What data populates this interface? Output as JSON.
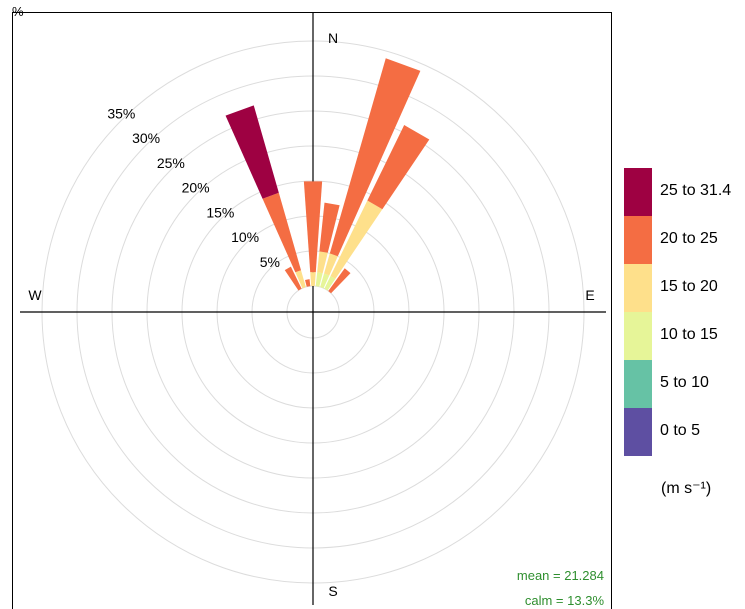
{
  "chart_data": {
    "type": "windrose",
    "axis_unit_label": "%",
    "ring_percents": [
      5,
      10,
      15,
      20,
      25,
      30,
      35
    ],
    "ring_labels": [
      "5%",
      "10%",
      "15%",
      "20%",
      "25%",
      "30%",
      "35%"
    ],
    "compass": {
      "north": "N",
      "south": "S",
      "east": "E",
      "west": "W"
    },
    "direction_bin_width_deg": 10,
    "speed_bins": [
      {
        "label": "0 to 5",
        "color": "#5E4FA2"
      },
      {
        "label": "5 to 10",
        "color": "#66C2A5"
      },
      {
        "label": "10 to 15",
        "color": "#E6F598"
      },
      {
        "label": "15 to 20",
        "color": "#FEE08B"
      },
      {
        "label": "20 to 25",
        "color": "#F46D43"
      },
      {
        "label": "25 to 31.4",
        "color": "#9E0142"
      }
    ],
    "units": "(m s⁻¹)",
    "sectors": [
      {
        "direction_deg": 330,
        "cumulative_percent": [
          0,
          0,
          0,
          0,
          3.5,
          3.5
        ]
      },
      {
        "direction_deg": 340,
        "cumulative_percent": [
          0,
          0,
          0,
          2.5,
          14,
          27
        ]
      },
      {
        "direction_deg": 350,
        "cumulative_percent": [
          0,
          0,
          0,
          0,
          1,
          1
        ]
      },
      {
        "direction_deg": 0,
        "cumulative_percent": [
          0,
          0,
          0,
          2,
          15,
          15
        ]
      },
      {
        "direction_deg": 10,
        "cumulative_percent": [
          0,
          0,
          2,
          5,
          12,
          12
        ]
      },
      {
        "direction_deg": 20,
        "cumulative_percent": [
          0,
          0,
          2,
          5,
          34,
          34
        ]
      },
      {
        "direction_deg": 30,
        "cumulative_percent": [
          0,
          0,
          2,
          14,
          26,
          26
        ]
      },
      {
        "direction_deg": 40,
        "cumulative_percent": [
          0,
          0,
          0,
          0,
          4,
          4
        ]
      }
    ],
    "mean_label": "mean = 21.284",
    "calm_label": "calm = 13.3%"
  }
}
